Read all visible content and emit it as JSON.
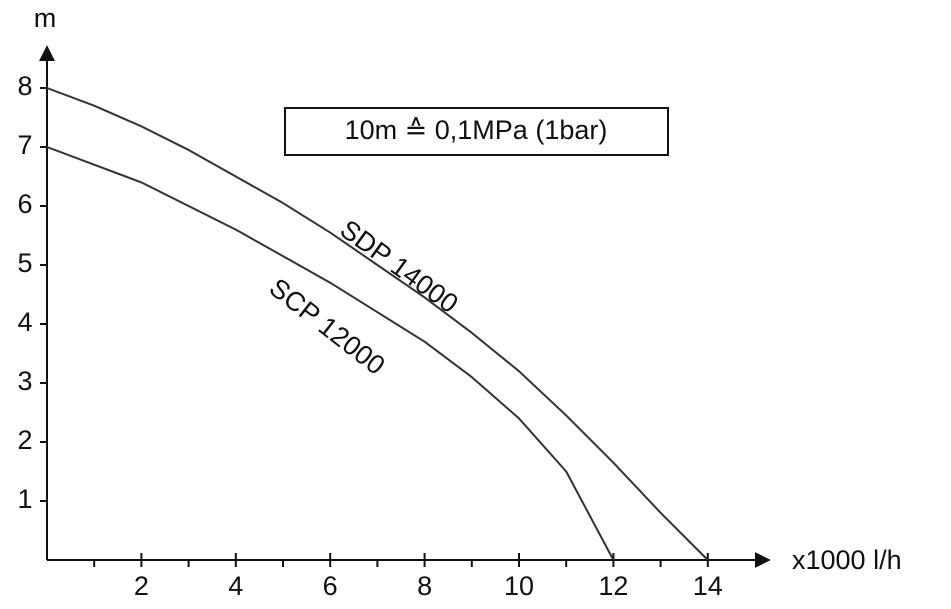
{
  "chart_data": {
    "type": "line",
    "annotation": "10m ≙ 0,1MPa (1bar)",
    "y_axis_label": "m",
    "x_axis_label": "x1000 l/h",
    "x": [
      0,
      1,
      2,
      3,
      4,
      5,
      6,
      7,
      8,
      9,
      10,
      11,
      12,
      13,
      14
    ],
    "series": [
      {
        "name": "SDP 14000",
        "color": "#333333",
        "values": [
          8,
          7.7,
          7.35,
          6.95,
          6.5,
          6.05,
          5.55,
          5.0,
          4.45,
          3.85,
          3.2,
          2.45,
          1.65,
          0.8,
          0
        ]
      },
      {
        "name": "SCP 12000",
        "color": "#333333",
        "values": [
          7,
          6.7,
          6.4,
          6.0,
          5.6,
          5.15,
          4.7,
          4.2,
          3.7,
          3.1,
          2.4,
          1.5,
          0,
          null,
          null
        ]
      }
    ],
    "xlim": [
      0,
      15.3
    ],
    "ylim": [
      0,
      8.7
    ],
    "xticks": [
      2,
      4,
      6,
      8,
      10,
      12,
      14
    ],
    "x_minor_ticks": [
      1,
      3,
      5,
      7,
      9,
      11,
      13
    ],
    "yticks": [
      1,
      2,
      3,
      4,
      5,
      6,
      7,
      8
    ],
    "grid": false
  }
}
